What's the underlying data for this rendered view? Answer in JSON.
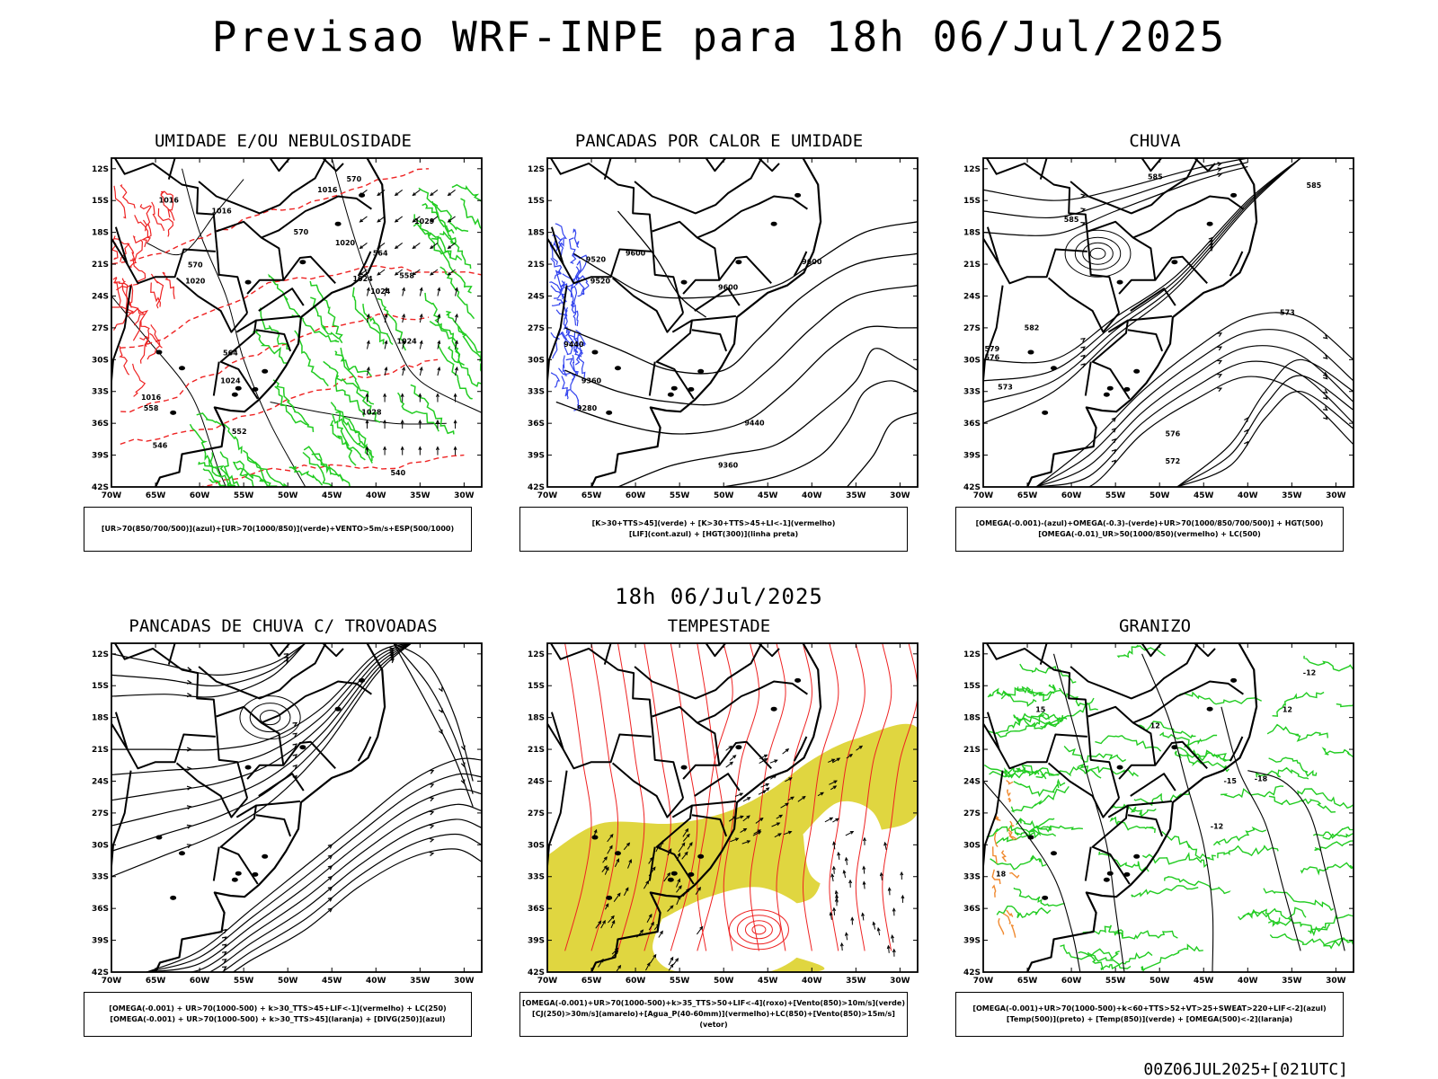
{
  "title": "Previsao WRF-INPE  para 18h 06/Jul/2025",
  "middle_title": "18h 06/Jul/2025",
  "footer": "00Z06JUL2025+[021UTC]",
  "axes": {
    "lat_labels": [
      "12S",
      "15S",
      "18S",
      "21S",
      "24S",
      "27S",
      "30S",
      "33S",
      "36S",
      "39S",
      "42S"
    ],
    "lon_labels": [
      "70W",
      "65W",
      "60W",
      "55W",
      "50W",
      "45W",
      "40W",
      "35W",
      "30W"
    ]
  },
  "colors": {
    "green": "#22cc22",
    "red": "#ee2222",
    "blue": "#3344ee",
    "lavender": "#b4b4f0",
    "yellow": "#e0d640",
    "orange": "#f08a30",
    "teal": "#2e5e58",
    "rain_red": "#ee4444"
  },
  "panels": [
    {
      "id": "umidade",
      "title": "UMIDADE E/OU NEBULOSIDADE",
      "legend": [
        "[UR>70(850/700/500)](azul)+[UR>70(1000/850)](verde)+VENTO>5m/s+ESP(500/1000)"
      ],
      "contour_labels": [
        {
          "text": "1016",
          "lon": -63.5,
          "lat": -15.2
        },
        {
          "text": "1016",
          "lon": -57.5,
          "lat": -16.2
        },
        {
          "text": "1016",
          "lon": -45.5,
          "lat": -14.2
        },
        {
          "text": "1020",
          "lon": -43.5,
          "lat": -19.2
        },
        {
          "text": "1020",
          "lon": -60.5,
          "lat": -22.8
        },
        {
          "text": "1024",
          "lon": -41.5,
          "lat": -22.6
        },
        {
          "text": "1024",
          "lon": -39.5,
          "lat": -23.8
        },
        {
          "text": "1024",
          "lon": -36.5,
          "lat": -28.5
        },
        {
          "text": "1024",
          "lon": -56.5,
          "lat": -32.2
        },
        {
          "text": "1028",
          "lon": -40.5,
          "lat": -35.2
        },
        {
          "text": "1029",
          "lon": -34.5,
          "lat": -17.2
        },
        {
          "text": "1016",
          "lon": -65.5,
          "lat": -33.8
        },
        {
          "text": "570",
          "lon": -42.5,
          "lat": -13.2
        },
        {
          "text": "570",
          "lon": -48.5,
          "lat": -18.2
        },
        {
          "text": "570",
          "lon": -60.5,
          "lat": -21.3
        },
        {
          "text": "564",
          "lon": -39.5,
          "lat": -20.2
        },
        {
          "text": "558",
          "lon": -36.5,
          "lat": -22.3
        },
        {
          "text": "564",
          "lon": -56.5,
          "lat": -29.6
        },
        {
          "text": "558",
          "lon": -65.5,
          "lat": -34.8
        },
        {
          "text": "546",
          "lon": -64.5,
          "lat": -38.3
        },
        {
          "text": "552",
          "lon": -55.5,
          "lat": -37.0
        },
        {
          "text": "540",
          "lon": -37.5,
          "lat": -40.9
        }
      ]
    },
    {
      "id": "pancadas_calor",
      "title": "PANCADAS POR CALOR E UMIDADE",
      "legend": [
        "[K>30+TTS>45](verde) + [K>30+TTS>45+LI<-1](vermelho)",
        "[LIF](cont.azul) + [HGT(300)](linha preta)"
      ],
      "contour_labels": [
        {
          "text": "9600",
          "lon": -60.0,
          "lat": -20.2
        },
        {
          "text": "9520",
          "lon": -64.5,
          "lat": -20.8
        },
        {
          "text": "9520",
          "lon": -64.0,
          "lat": -22.8
        },
        {
          "text": "9600",
          "lon": -49.5,
          "lat": -23.4
        },
        {
          "text": "9600",
          "lon": -40.0,
          "lat": -21.0
        },
        {
          "text": "9440",
          "lon": -67.0,
          "lat": -28.8
        },
        {
          "text": "9360",
          "lon": -65.0,
          "lat": -32.2
        },
        {
          "text": "9280",
          "lon": -65.5,
          "lat": -34.8
        },
        {
          "text": "9440",
          "lon": -46.5,
          "lat": -36.2
        },
        {
          "text": "9360",
          "lon": -49.5,
          "lat": -40.2
        }
      ]
    },
    {
      "id": "chuva",
      "title": "CHUVA",
      "legend": [
        "[OMEGA(-0.001)-(azul)+OMEGA(-0.3)-(verde)+UR>70(1000/850/700/500)] + HGT(500)",
        "[OMEGA(-0.01)_UR>50(1000/850)(vermelho) + LC(500)"
      ],
      "contour_labels": [
        {
          "text": "585",
          "lon": -50.5,
          "lat": -13.0
        },
        {
          "text": "585",
          "lon": -32.5,
          "lat": -13.8
        },
        {
          "text": "585",
          "lon": -60.0,
          "lat": -17.0
        },
        {
          "text": "582",
          "lon": -64.5,
          "lat": -27.2
        },
        {
          "text": "579",
          "lon": -69.0,
          "lat": -29.2
        },
        {
          "text": "576",
          "lon": -69.0,
          "lat": -30.0
        },
        {
          "text": "573",
          "lon": -67.5,
          "lat": -32.8
        },
        {
          "text": "573",
          "lon": -35.5,
          "lat": -25.8
        },
        {
          "text": "576",
          "lon": -48.5,
          "lat": -37.2
        },
        {
          "text": "572",
          "lon": -48.5,
          "lat": -39.8
        }
      ]
    },
    {
      "id": "trovoadas",
      "title": "PANCADAS DE CHUVA C/ TROVOADAS",
      "legend": [
        "[OMEGA(-0.001) + UR>70(1000-500) + k>30_TTS>45+LIF<-1](vermelho) + LC(250)",
        "[OMEGA(-0.001) + UR>70(1000-500) + k>30_TTS>45](laranja) + [DIVG(250)](azul)"
      ],
      "contour_labels": []
    },
    {
      "id": "tempestade",
      "title": "TEMPESTADE",
      "legend": [
        "[OMEGA(-0.001)+UR>70(1000-500)+k>35_TTS>50+LIF<-4](roxo)+[Vento(850)>10m/s](verde)",
        "[CJ(250)>30m/s](amarelo)+[Agua_P(40-60mm)](vermelho)+LC(850)+[Vento(850)>15m/s](vetor)"
      ],
      "contour_labels": []
    },
    {
      "id": "granizo",
      "title": "GRANIZO",
      "legend": [
        "[OMEGA(-0.001)+UR>70(1000-500)+k<60+TTS>52+VT>25+SWEAT>220+LIF<-2](azul)",
        "[Temp(500)](preto) + [Temp(850)](verde) + [OMEGA(500)<-2](laranja)"
      ],
      "contour_labels": [
        {
          "text": "-12",
          "lon": -43.5,
          "lat": -28.5
        },
        {
          "text": "-15",
          "lon": -42.0,
          "lat": -24.2
        },
        {
          "text": "-18",
          "lon": -38.5,
          "lat": -24.0
        },
        {
          "text": "-12",
          "lon": -33.0,
          "lat": -14.0
        },
        {
          "text": "12",
          "lon": -50.5,
          "lat": -19.0
        },
        {
          "text": "12",
          "lon": -35.5,
          "lat": -17.5
        },
        {
          "text": "15",
          "lon": -63.5,
          "lat": -17.5
        },
        {
          "text": "18",
          "lon": -68.0,
          "lat": -33.0
        }
      ]
    }
  ]
}
